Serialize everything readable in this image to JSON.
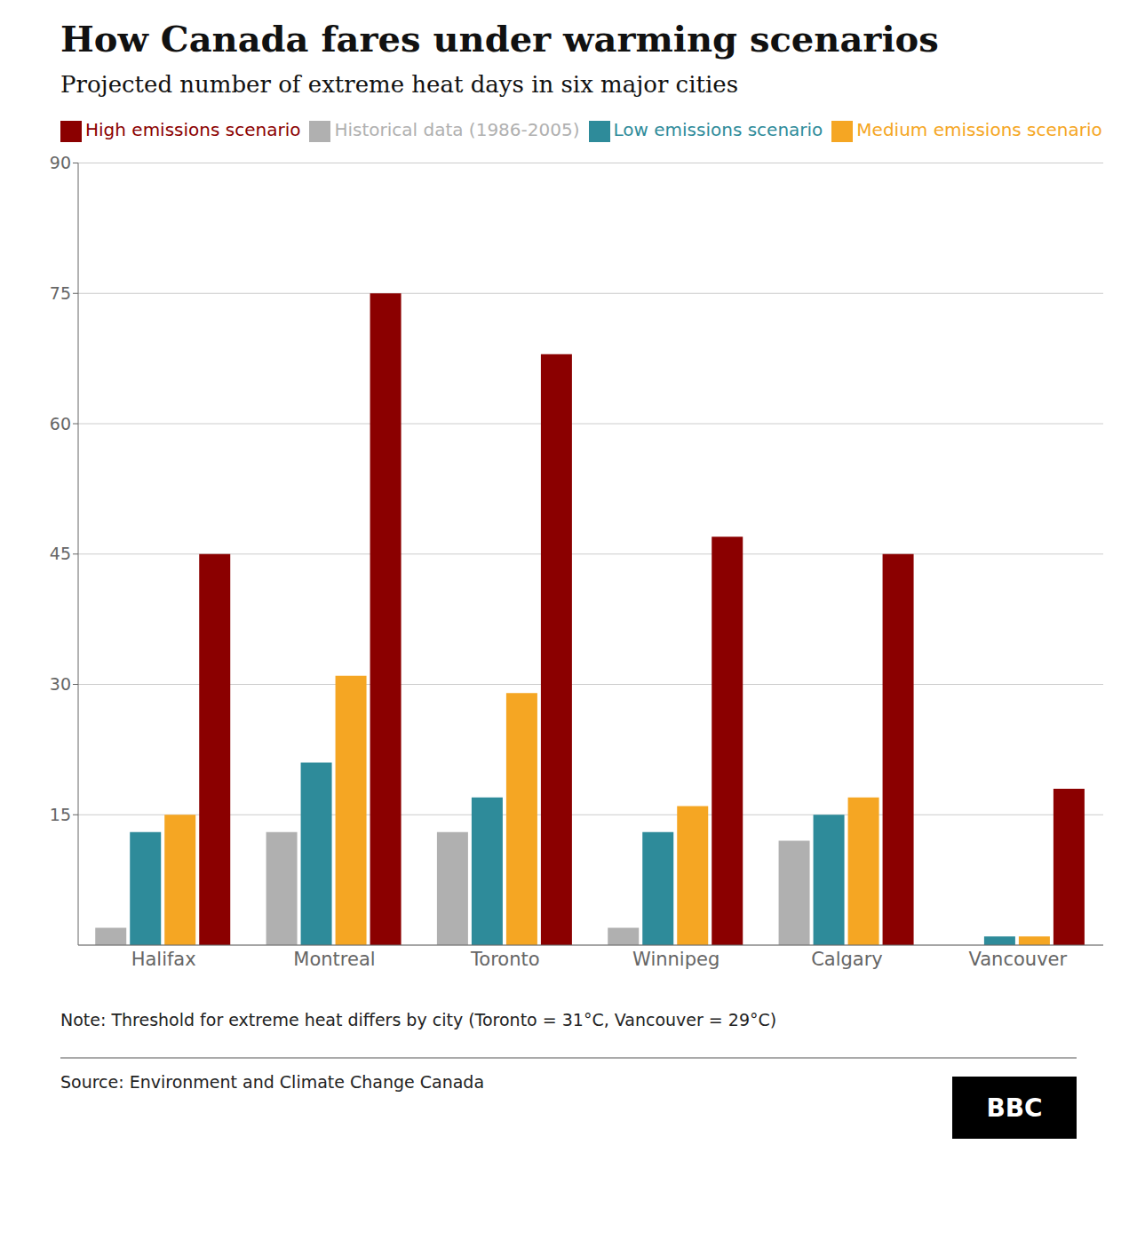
{
  "chart_data": {
    "type": "bar",
    "title": "How Canada fares under warming scenarios",
    "subtitle": "Projected number of extreme heat days in six major cities",
    "categories": [
      "Halifax",
      "Montreal",
      "Toronto",
      "Winnipeg",
      "Calgary",
      "Vancouver"
    ],
    "series": [
      {
        "name": "Historical data (1986-2005)",
        "color": "#b0b0b0",
        "values": [
          2,
          13,
          13,
          2,
          12,
          0
        ]
      },
      {
        "name": "Low emissions scenario",
        "color": "#2e8b9a",
        "values": [
          13,
          21,
          17,
          13,
          15,
          1
        ]
      },
      {
        "name": "Medium emissions scenario",
        "color": "#f5a623",
        "values": [
          15,
          31,
          29,
          16,
          17,
          1
        ]
      },
      {
        "name": "High emissions scenario",
        "color": "#8b0000",
        "values": [
          45,
          75,
          68,
          47,
          45,
          18
        ]
      }
    ],
    "ylim": [
      0,
      90
    ],
    "yticks": [
      15,
      30,
      45,
      60,
      75,
      90
    ],
    "grid": true,
    "legend": "top",
    "annotations": [
      "Note: Threshold for extreme heat differs by city (Toronto = 31°C, Vancouver = 29°C)",
      "Source: Environment and Climate Change Canada",
      "BBC"
    ]
  }
}
